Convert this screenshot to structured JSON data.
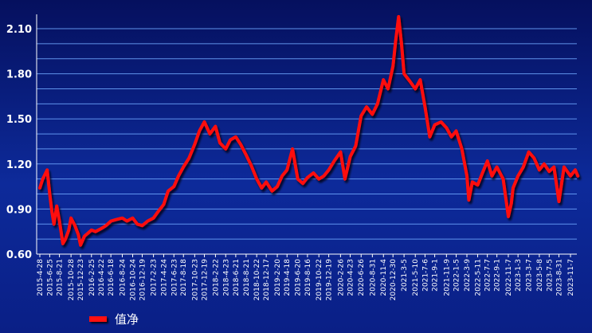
{
  "chart_data": {
    "type": "line",
    "title": "",
    "xlabel": "",
    "ylabel": "",
    "ylim": [
      0.6,
      2.1
    ],
    "y_ticks": [
      "0.60",
      "0.90",
      "1.20",
      "1.50",
      "1.80",
      "2.10"
    ],
    "grid": true,
    "legend_position": "bottom-left",
    "colors": {
      "line": "#ff1010",
      "background": "#0a1f86",
      "grid": "#6fa8ff",
      "axis_text": "#ffffff"
    },
    "x_tick_labels": [
      "2015-4-28",
      "2015-6-25",
      "2015-8-21",
      "2015-10-28",
      "2015-12-23",
      "2016-2-25",
      "2016-4-22",
      "2016-6-18",
      "2016-8-24",
      "2016-10-24",
      "2016-12-19",
      "2017-2-23",
      "2017-4-24",
      "2017-6-23",
      "2017-8-18",
      "2017-10-23",
      "2017-12-19",
      "2018-2-22",
      "2018-4-23",
      "2018-6-21",
      "2018-8-21",
      "2018-10-22",
      "2018-12-17",
      "2019-2-20",
      "2019-4-18",
      "2019-6-20",
      "2019-8-16",
      "2019-10-22",
      "2019-12-19",
      "2020-2-26",
      "2020-4-23",
      "2020-6-26",
      "2020-8-31",
      "2020-11-4",
      "2020-12-30",
      "2021-3-5",
      "2021-5-10",
      "2021-7-6",
      "2021-9-1",
      "2021-11-9",
      "2022-1-5",
      "2022-3-9",
      "2022-5-11",
      "2022-7-7",
      "2022-9-1",
      "2022-11-7",
      "2023-1-3",
      "2023-3-7",
      "2023-5-8",
      "2023-7-5",
      "2023-8-31",
      "2023-11-7"
    ],
    "series": [
      {
        "name": "值净",
        "x": [
          "2015-4-28",
          "2015-5-15",
          "2015-6-10",
          "2015-6-25",
          "2015-7-8",
          "2015-7-20",
          "2015-8-5",
          "2015-8-21",
          "2015-9-10",
          "2015-9-25",
          "2015-10-15",
          "2015-10-28",
          "2015-11-20",
          "2015-12-10",
          "2015-12-23",
          "2016-1-15",
          "2016-2-5",
          "2016-2-25",
          "2016-3-20",
          "2016-4-22",
          "2016-5-20",
          "2016-6-18",
          "2016-7-20",
          "2016-8-24",
          "2016-9-20",
          "2016-10-24",
          "2016-11-20",
          "2016-12-19",
          "2017-1-20",
          "2017-2-23",
          "2017-3-20",
          "2017-4-24",
          "2017-5-20",
          "2017-6-23",
          "2017-7-20",
          "2017-8-18",
          "2017-9-20",
          "2017-10-23",
          "2017-11-20",
          "2017-12-19",
          "2018-1-20",
          "2018-2-22",
          "2018-3-20",
          "2018-4-23",
          "2018-5-20",
          "2018-6-21",
          "2018-7-20",
          "2018-8-21",
          "2018-9-20",
          "2018-10-22",
          "2018-11-20",
          "2018-12-17",
          "2019-1-20",
          "2019-2-20",
          "2019-3-20",
          "2019-4-18",
          "2019-5-20",
          "2019-6-20",
          "2019-7-20",
          "2019-8-16",
          "2019-9-20",
          "2019-10-22",
          "2019-11-20",
          "2019-12-19",
          "2020-1-20",
          "2020-2-26",
          "2020-3-23",
          "2020-4-23",
          "2020-5-25",
          "2020-6-26",
          "2020-7-28",
          "2020-8-31",
          "2020-9-30",
          "2020-11-4",
          "2020-12-1",
          "2020-12-30",
          "2021-1-15",
          "2021-2-1",
          "2021-2-18",
          "2021-3-5",
          "2021-4-8",
          "2021-5-10",
          "2021-6-8",
          "2021-7-6",
          "2021-8-3",
          "2021-9-1",
          "2021-10-8",
          "2021-11-9",
          "2021-12-8",
          "2022-1-5",
          "2022-2-7",
          "2022-3-9",
          "2022-3-20",
          "2022-4-10",
          "2022-5-11",
          "2022-6-8",
          "2022-7-7",
          "2022-8-3",
          "2022-9-1",
          "2022-10-8",
          "2022-11-7",
          "2022-11-25",
          "2022-12-5",
          "2023-1-3",
          "2023-2-3",
          "2023-3-7",
          "2023-4-7",
          "2023-5-8",
          "2023-6-5",
          "2023-7-5",
          "2023-8-2",
          "2023-8-31",
          "2023-9-30",
          "2023-11-7",
          "2023-12-5",
          "2023-12-20"
        ],
        "values": [
          1.04,
          1.1,
          1.16,
          1.0,
          0.88,
          0.8,
          0.92,
          0.82,
          0.67,
          0.7,
          0.76,
          0.84,
          0.79,
          0.73,
          0.66,
          0.72,
          0.74,
          0.76,
          0.75,
          0.77,
          0.79,
          0.82,
          0.83,
          0.84,
          0.82,
          0.84,
          0.8,
          0.79,
          0.82,
          0.84,
          0.88,
          0.93,
          1.02,
          1.05,
          1.12,
          1.18,
          1.24,
          1.33,
          1.42,
          1.48,
          1.4,
          1.45,
          1.34,
          1.3,
          1.36,
          1.38,
          1.33,
          1.26,
          1.19,
          1.1,
          1.04,
          1.08,
          1.02,
          1.05,
          1.12,
          1.16,
          1.3,
          1.1,
          1.07,
          1.11,
          1.14,
          1.1,
          1.12,
          1.16,
          1.22,
          1.28,
          1.1,
          1.25,
          1.32,
          1.52,
          1.58,
          1.53,
          1.6,
          1.76,
          1.7,
          1.85,
          2.02,
          2.18,
          2.0,
          1.8,
          1.75,
          1.7,
          1.76,
          1.58,
          1.38,
          1.46,
          1.48,
          1.44,
          1.38,
          1.42,
          1.3,
          1.12,
          0.96,
          1.08,
          1.06,
          1.14,
          1.22,
          1.12,
          1.18,
          1.1,
          0.85,
          0.94,
          1.04,
          1.12,
          1.18,
          1.28,
          1.24,
          1.16,
          1.2,
          1.15,
          1.18,
          0.95,
          1.18,
          1.12,
          1.16,
          1.12
        ]
      }
    ]
  },
  "legend": {
    "label": "值净"
  }
}
